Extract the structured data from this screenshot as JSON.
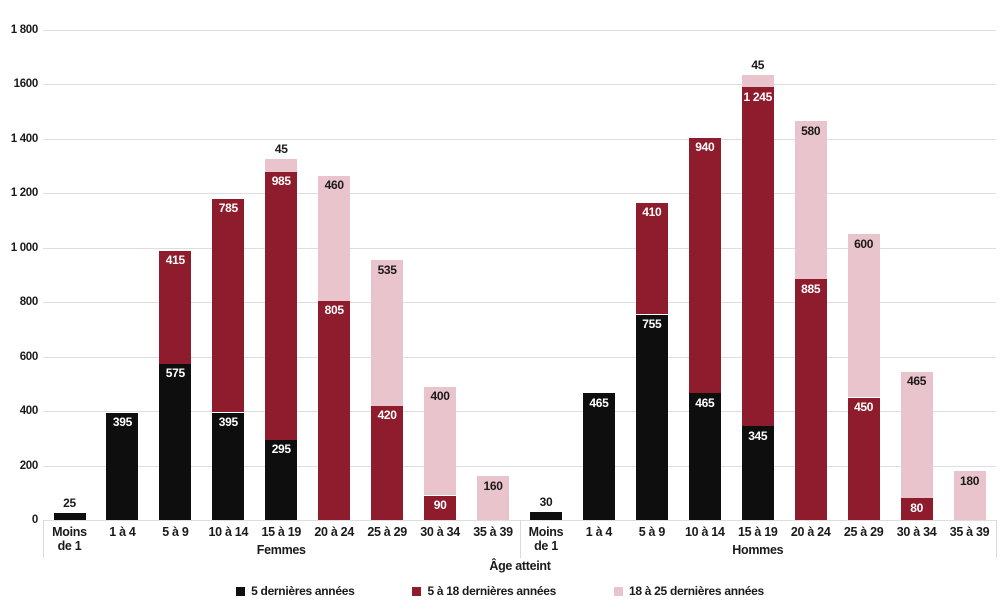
{
  "chart_data": {
    "type": "bar",
    "stacked": true,
    "title": "",
    "xlabel": "Âge atteint",
    "ylabel": "",
    "ylim": [
      0,
      1800
    ],
    "ytick_step": 200,
    "ytick_labels": [
      "0",
      "200",
      "400",
      "600",
      "800",
      "1 000",
      "1 200",
      "1 400",
      "1600",
      "1 800"
    ],
    "grid": true,
    "legend_position": "bottom",
    "categories": [
      "Moins de 1",
      "1 à 4",
      "5 à 9",
      "10 à 14",
      "15 à 19",
      "20 à 24",
      "25 à 29",
      "30 à 34",
      "35 à 39"
    ],
    "categories_display": [
      [
        "Moins",
        "de 1"
      ],
      [
        "1 à 4"
      ],
      [
        "5 à 9"
      ],
      [
        "10 à 14"
      ],
      [
        "15 à 19"
      ],
      [
        "20 à 24"
      ],
      [
        "25 à 29"
      ],
      [
        "30 à 34"
      ],
      [
        "35 à 39"
      ]
    ],
    "groups": [
      {
        "label": "Femmes",
        "series": [
          {
            "name": "5 dernières années",
            "color": "#0e0e0e",
            "label_color": "#ffffff",
            "values": [
              25,
              395,
              575,
              395,
              295,
              null,
              null,
              null,
              null
            ]
          },
          {
            "name": "5 à 18 dernières années",
            "color": "#8e1c2c",
            "label_color": "#ffffff",
            "values": [
              null,
              null,
              415,
              785,
              985,
              805,
              420,
              90,
              null
            ]
          },
          {
            "name": "18 à 25 dernières années",
            "color": "#eac4cd",
            "label_color": "#1a1a1a",
            "values": [
              null,
              null,
              null,
              null,
              45,
              460,
              535,
              400,
              160
            ]
          }
        ]
      },
      {
        "label": "Hommes",
        "series": [
          {
            "name": "5 dernières années",
            "color": "#0e0e0e",
            "label_color": "#ffffff",
            "values": [
              30,
              465,
              755,
              465,
              345,
              null,
              null,
              null,
              null
            ]
          },
          {
            "name": "5 à 18 dernières années",
            "color": "#8e1c2c",
            "label_color": "#ffffff",
            "values": [
              null,
              null,
              410,
              940,
              1245,
              885,
              450,
              80,
              null
            ]
          },
          {
            "name": "18 à 25 dernières années",
            "color": "#eac4cd",
            "label_color": "#1a1a1a",
            "values": [
              null,
              null,
              null,
              null,
              45,
              580,
              600,
              465,
              180
            ]
          }
        ]
      }
    ],
    "legend": [
      {
        "label": "5 dernières années",
        "color": "#0e0e0e"
      },
      {
        "label": "5 à 18 dernières années",
        "color": "#8e1c2c"
      },
      {
        "label": "18 à 25 dernières années",
        "color": "#eac4cd"
      }
    ],
    "colors": {
      "gridline": "#dedede",
      "axis_tick": "#d9d9d9",
      "text": "#1a1a1a"
    }
  }
}
